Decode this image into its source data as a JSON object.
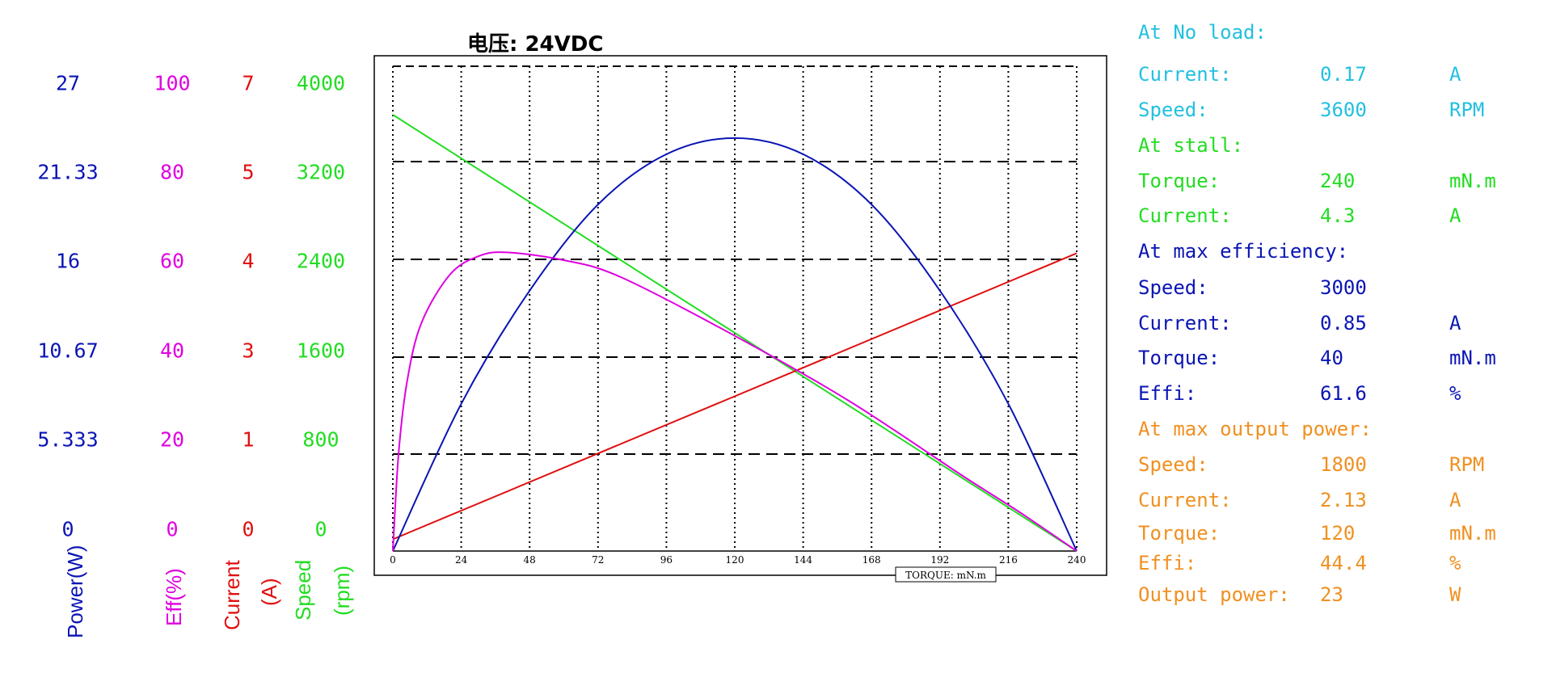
{
  "colors": {
    "power": "#0a14b4",
    "eff": "#e000e0",
    "current": "#e01010",
    "speed": "#22dd22",
    "noload": "#22c0e0",
    "stall": "#22dd22",
    "maxeff": "#0a14b4",
    "maxpower": "#f09020"
  },
  "axes": {
    "power": {
      "ticks": [
        "27",
        "21.33",
        "16",
        "10.67",
        "5.333",
        "0"
      ],
      "title": "Power(W)"
    },
    "eff": {
      "ticks": [
        "100",
        "80",
        "60",
        "40",
        "20",
        "0"
      ],
      "title": "Eff(%)"
    },
    "current": {
      "ticks": [
        "7",
        "5",
        "4",
        "3",
        "1",
        "0"
      ],
      "title_line1": "Current",
      "title_line2": "(A)"
    },
    "speed": {
      "ticks": [
        "4000",
        "3200",
        "2400",
        "1600",
        "800",
        "0"
      ],
      "title_line1": "Speed",
      "title_line2": "(rpm)"
    }
  },
  "info": {
    "noload": {
      "heading": "At No load:",
      "rows": [
        {
          "label": "Current:",
          "value": "0.17",
          "unit": "A"
        },
        {
          "label": "Speed:",
          "value": "3600",
          "unit": "RPM"
        }
      ]
    },
    "stall": {
      "heading": "At stall:",
      "rows": [
        {
          "label": "Torque:",
          "value": "240",
          "unit": "mN.m"
        },
        {
          "label": "Current:",
          "value": "4.3",
          "unit": "A"
        }
      ]
    },
    "maxeff": {
      "heading": "At max efficiency:",
      "rows": [
        {
          "label": "Speed:",
          "value": "3000",
          "unit": ""
        },
        {
          "label": "Current:",
          "value": "0.85",
          "unit": "A"
        },
        {
          "label": "Torque:",
          "value": "40",
          "unit": "mN.m"
        },
        {
          "label": "Effi:",
          "value": "61.6",
          "unit": "%"
        }
      ]
    },
    "maxpower": {
      "heading": "At max output power:",
      "rows": [
        {
          "label": "Speed:",
          "value": "1800",
          "unit": "RPM"
        },
        {
          "label": "Current:",
          "value": "2.13",
          "unit": "A"
        },
        {
          "label": "Torque:",
          "value": "120",
          "unit": "mN.m"
        },
        {
          "label": "Effi:",
          "value": "44.4",
          "unit": "%"
        },
        {
          "label": "Output power:",
          "value": "23",
          "unit": "W"
        }
      ]
    }
  },
  "chart_data": {
    "type": "line",
    "title": "电压: 24VDC",
    "xlabel": "TORQUE: mN.m",
    "xlim": [
      0,
      240
    ],
    "x_ticks": [
      0,
      24,
      48,
      72,
      96,
      120,
      144,
      168,
      192,
      216,
      240
    ],
    "grid": true,
    "series": [
      {
        "name": "Speed(rpm)",
        "x": [
          0,
          240
        ],
        "values": [
          3600,
          0
        ]
      },
      {
        "name": "Current(A)",
        "x": [
          0,
          240
        ],
        "values": [
          0.17,
          4.3
        ]
      },
      {
        "name": "Power(W)",
        "x": [
          0,
          24,
          48,
          72,
          96,
          120,
          144,
          168,
          192,
          216,
          240
        ],
        "values": [
          0,
          8.2,
          14.5,
          19.3,
          22.1,
          23,
          22.1,
          19.3,
          14.5,
          8.2,
          0
        ]
      },
      {
        "name": "Eff(%)",
        "x": [
          0,
          2,
          5,
          10,
          20,
          30,
          40,
          60,
          80,
          120,
          160,
          200,
          220,
          240
        ],
        "values": [
          0,
          20,
          35,
          47,
          57,
          60.8,
          61.6,
          60,
          56.5,
          44.4,
          31,
          15.5,
          8,
          0
        ]
      }
    ]
  }
}
